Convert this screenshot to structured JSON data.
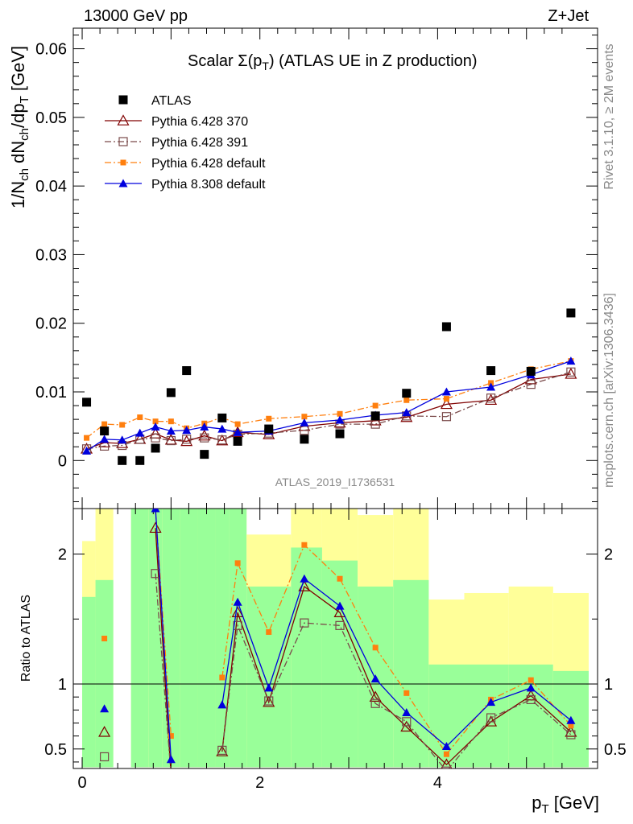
{
  "header": {
    "left": "13000 GeV pp",
    "right": "Z+Jet"
  },
  "side_labels": {
    "rivet": "Rivet 3.1.10, ≥ 2M events",
    "mcplots": "mcplots.cern.ch [arXiv:1306.3436]"
  },
  "watermark": "ATLAS_2019_I1736531",
  "chart_data": [
    {
      "type": "scatter",
      "title": "Scalar Σ(p_T) (ATLAS UE in Z production)",
      "title_parts": {
        "main": "Scalar Σ(p",
        "sub": "T",
        "tail": ") (ATLAS UE in Z production)"
      },
      "ylabel": "1/N_ch dN_ch/dp_T [GeV]",
      "xlim": [
        -0.1,
        5.8
      ],
      "ylim": [
        -0.007,
        0.063
      ],
      "yticks": [
        0,
        0.01,
        0.02,
        0.03,
        0.04,
        0.05,
        0.06
      ],
      "ytick_labels": [
        "0",
        "0.01",
        "0.02",
        "0.03",
        "0.04",
        "0.05",
        "0.06"
      ],
      "grid": false,
      "legend_position": "top-left",
      "x": [
        0.05,
        0.25,
        0.45,
        0.65,
        0.825,
        1.0,
        1.175,
        1.375,
        1.575,
        1.75,
        2.1,
        2.5,
        2.9,
        3.3,
        3.65,
        4.1,
        4.6,
        5.05,
        5.5
      ],
      "series": [
        {
          "name": "ATLAS",
          "color": "#000000",
          "marker": "square-filled",
          "values": [
            0.0085,
            0.0043,
            0.0,
            0.0,
            0.0018,
            0.0099,
            0.0131,
            0.0009,
            0.0062,
            0.0028,
            0.0046,
            0.0031,
            0.0039,
            0.0065,
            0.0098,
            0.0195,
            0.0131,
            0.013,
            0.0215
          ]
        },
        {
          "name": "Pythia 6.428 370",
          "color": "#800000",
          "marker": "triangle-open",
          "dash": "solid",
          "values": [
            0.0017,
            0.0026,
            0.0025,
            0.0031,
            0.0039,
            0.003,
            0.0028,
            0.0036,
            0.0029,
            0.0041,
            0.0038,
            0.005,
            0.0055,
            0.0058,
            0.0063,
            0.0082,
            0.0088,
            0.0118,
            0.0126
          ]
        },
        {
          "name": "Pythia 6.428 391",
          "color": "#7a4a4a",
          "marker": "square-open",
          "dash": "dash-dot",
          "values": [
            0.0017,
            0.0021,
            0.0022,
            0.0031,
            0.0033,
            0.0029,
            0.0031,
            0.0033,
            0.003,
            0.0038,
            0.004,
            0.0044,
            0.0053,
            0.0053,
            0.0065,
            0.0064,
            0.0091,
            0.0111,
            0.0129
          ]
        },
        {
          "name": "Pythia 6.428 default",
          "color": "#ff7f0e",
          "marker": "square-filled-small",
          "dash": "dash-dot",
          "values": [
            0.0033,
            0.0053,
            0.0052,
            0.0063,
            0.0057,
            0.0057,
            0.0047,
            0.0054,
            0.0063,
            0.0053,
            0.0061,
            0.0064,
            0.0068,
            0.008,
            0.0088,
            0.009,
            0.0113,
            0.0133,
            0.0145
          ]
        },
        {
          "name": "Pythia 8.308 default",
          "color": "#0000dd",
          "marker": "triangle-filled",
          "dash": "solid",
          "values": [
            0.0014,
            0.0031,
            0.003,
            0.004,
            0.0049,
            0.0043,
            0.0044,
            0.0049,
            0.0046,
            0.0041,
            0.0043,
            0.0055,
            0.0059,
            0.0066,
            0.007,
            0.01,
            0.0107,
            0.0125,
            0.0145
          ]
        }
      ]
    },
    {
      "type": "line",
      "ylabel": "Ratio to ATLAS",
      "xlabel": "p_T [GeV]",
      "xlabel_parts": {
        "main": "p",
        "sub": "T",
        "tail": " [GeV]"
      },
      "xlim": [
        -0.1,
        5.8
      ],
      "ylim": [
        0.35,
        2.35
      ],
      "xticks": [
        0,
        2,
        4
      ],
      "xtick_labels": [
        "0",
        "2",
        "4"
      ],
      "yticks": [
        0.5,
        1,
        2
      ],
      "ytick_labels": [
        "0.5",
        "1",
        "2"
      ],
      "reference_line": 1,
      "grid": false,
      "uncertainty_bands": {
        "edges": [
          0.0,
          0.15,
          0.35,
          0.55,
          0.75,
          0.9,
          1.1,
          1.3,
          1.5,
          1.65,
          1.85,
          2.35,
          2.7,
          3.1,
          3.5,
          3.9,
          4.3,
          4.8,
          5.3,
          5.7
        ],
        "inner_color": "#99ff99",
        "outer_color": "#ffff99",
        "inner_low": [
          0.36,
          0.36,
          null,
          0.36,
          0.36,
          0.36,
          0.36,
          0.36,
          0.36,
          0.36,
          0.36,
          0.36,
          0.36,
          0.36,
          0.36,
          0.36,
          0.36,
          0.36,
          0.36
        ],
        "inner_high": [
          1.67,
          1.8,
          null,
          2.35,
          2.35,
          2.35,
          2.35,
          2.35,
          2.35,
          2.35,
          1.75,
          2.05,
          1.95,
          1.75,
          1.8,
          1.15,
          1.15,
          1.15,
          1.1
        ],
        "outer_low": [
          0.36,
          0.36,
          null,
          0.36,
          0.36,
          0.36,
          0.36,
          0.36,
          0.36,
          0.36,
          0.36,
          0.36,
          0.36,
          0.36,
          0.36,
          0.36,
          0.36,
          0.36,
          0.36
        ],
        "outer_high": [
          2.1,
          2.35,
          null,
          2.35,
          2.35,
          2.35,
          2.35,
          2.35,
          2.35,
          2.35,
          2.15,
          2.35,
          2.35,
          2.3,
          2.35,
          1.65,
          1.7,
          1.75,
          1.7
        ]
      },
      "x": [
        0.05,
        0.25,
        0.45,
        0.65,
        0.825,
        1.0,
        1.175,
        1.375,
        1.575,
        1.75,
        2.1,
        2.5,
        2.9,
        3.3,
        3.65,
        4.1,
        4.6,
        5.05,
        5.5
      ],
      "series": [
        {
          "name": "Pythia 6.428 370",
          "color": "#800000",
          "marker": "triangle-open",
          "dash": "solid",
          "values": [
            null,
            0.63,
            null,
            null,
            2.2,
            0.3,
            null,
            null,
            0.48,
            1.55,
            0.86,
            1.75,
            1.55,
            0.9,
            0.67,
            0.38,
            0.71,
            0.91,
            0.63
          ]
        },
        {
          "name": "Pythia 6.428 391",
          "color": "#7a4a4a",
          "marker": "square-open",
          "dash": "dash-dot",
          "values": [
            null,
            0.44,
            null,
            null,
            1.85,
            0.3,
            null,
            null,
            0.49,
            1.45,
            0.87,
            1.47,
            1.45,
            0.85,
            0.71,
            0.33,
            0.74,
            0.88,
            0.61
          ]
        },
        {
          "name": "Pythia 6.428 default",
          "color": "#ff7f0e",
          "marker": "square-filled-small",
          "dash": "dash-dot",
          "values": [
            null,
            1.35,
            null,
            null,
            2.35,
            0.6,
            null,
            null,
            1.05,
            1.93,
            1.4,
            2.07,
            1.81,
            1.28,
            0.93,
            0.46,
            0.88,
            1.03,
            0.68
          ]
        },
        {
          "name": "Pythia 8.308 default",
          "color": "#0000dd",
          "marker": "triangle-filled",
          "dash": "solid",
          "values": [
            null,
            0.81,
            null,
            null,
            2.35,
            0.42,
            null,
            null,
            0.84,
            1.63,
            0.97,
            1.81,
            1.6,
            1.04,
            0.78,
            0.52,
            0.86,
            0.97,
            0.72
          ]
        }
      ]
    }
  ]
}
